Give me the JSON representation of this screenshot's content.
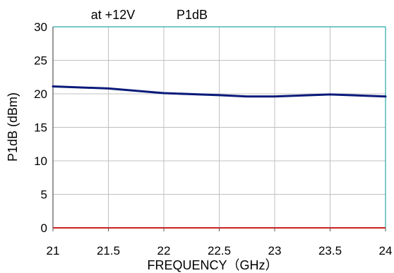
{
  "chart_data": {
    "type": "line",
    "title": "P1dB",
    "subtitle": "at +12V",
    "xlabel": "FREQUENCY（GHz）",
    "ylabel": "P1dB (dBm)",
    "xlim": [
      21,
      24
    ],
    "ylim": [
      0,
      30
    ],
    "x_ticks": [
      "21",
      "21.5",
      "22",
      "22.5",
      "23",
      "23.5",
      "24"
    ],
    "y_ticks": [
      "0",
      "5",
      "10",
      "15",
      "20",
      "25",
      "30"
    ],
    "grid": true,
    "series": [
      {
        "x": [
          21,
          21.5,
          22,
          22.5,
          22.75,
          23,
          23.5,
          24
        ],
        "y": [
          21.1,
          20.8,
          20.1,
          19.8,
          19.6,
          19.6,
          19.9,
          19.6
        ]
      }
    ],
    "colors": {
      "line": "#0a1a7a",
      "grid": "#c0c0c0",
      "frame": "#2aa8a8",
      "baseline": "#cc2222"
    }
  }
}
